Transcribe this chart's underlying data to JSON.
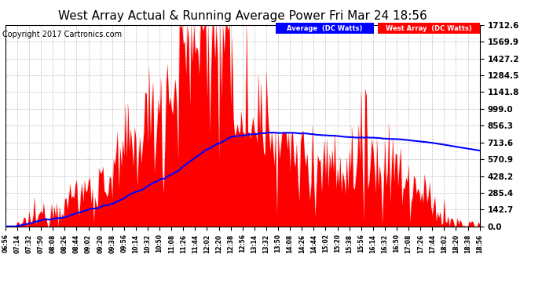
{
  "title": "West Array Actual & Running Average Power Fri Mar 24 18:56",
  "copyright": "Copyright 2017 Cartronics.com",
  "y_max": 1712.6,
  "y_ticks": [
    0.0,
    142.7,
    285.4,
    428.2,
    570.9,
    713.6,
    856.3,
    999.0,
    1141.8,
    1284.5,
    1427.2,
    1569.9,
    1712.6
  ],
  "bg_color": "#ffffff",
  "plot_bg_color": "#ffffff",
  "grid_color": "#b0b0b0",
  "bar_color": "#ff0000",
  "line_color": "#0000ff",
  "legend_avg_bg": "#0000ff",
  "legend_west_bg": "#ff0000",
  "legend_avg_text": "Average  (DC Watts)",
  "legend_west_text": "West Array  (DC Watts)",
  "title_fontsize": 11,
  "copyright_fontsize": 7
}
